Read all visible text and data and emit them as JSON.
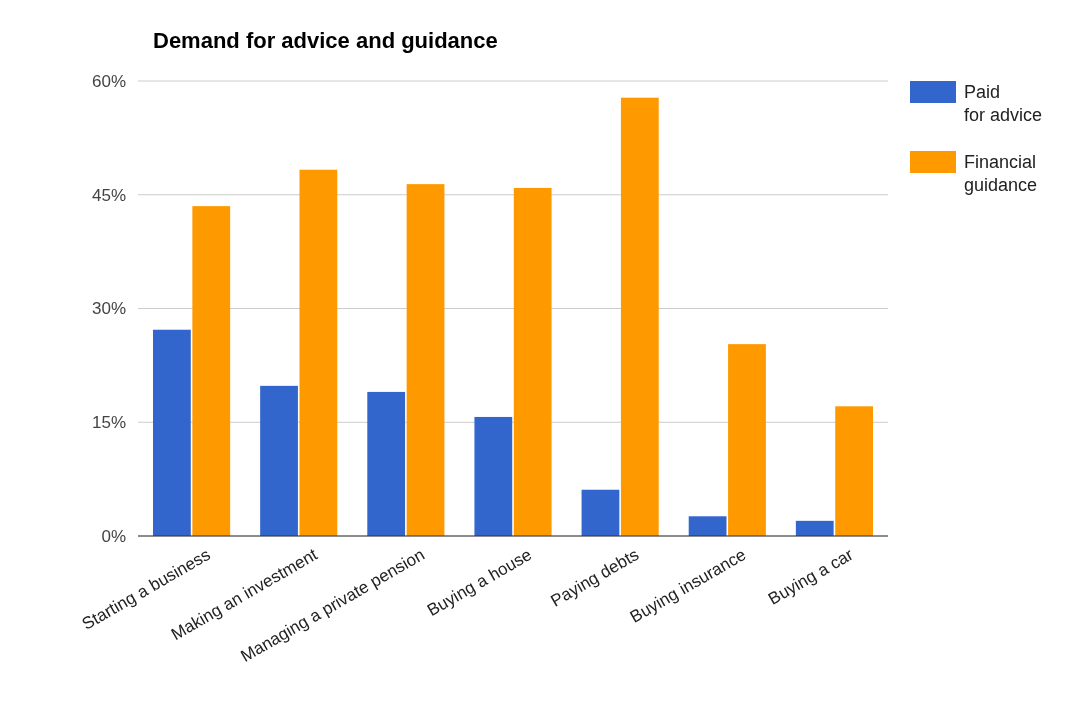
{
  "chart_data": {
    "type": "bar",
    "title": "Demand for advice and guidance",
    "categories": [
      "Starting a business",
      "Making an investment",
      "Managing a private pension",
      "Buying a house",
      "Paying debts",
      "Buying insurance",
      "Buying a car"
    ],
    "series": [
      {
        "name": "Paid for advice",
        "color": "#3366cc",
        "values": [
          27.2,
          19.8,
          19.0,
          15.7,
          6.1,
          2.6,
          2.0
        ]
      },
      {
        "name": "Financial guidance",
        "color": "#ff9900",
        "values": [
          43.5,
          48.3,
          46.4,
          45.9,
          57.8,
          25.3,
          17.1
        ]
      }
    ],
    "ylim": [
      0,
      60
    ],
    "yticks": [
      {
        "value": 0,
        "label": "0%"
      },
      {
        "value": 15,
        "label": "15%"
      },
      {
        "value": 30,
        "label": "30%"
      },
      {
        "value": 45,
        "label": "45%"
      },
      {
        "value": 60,
        "label": "60%"
      }
    ],
    "grid": "y",
    "legend": "top right"
  }
}
